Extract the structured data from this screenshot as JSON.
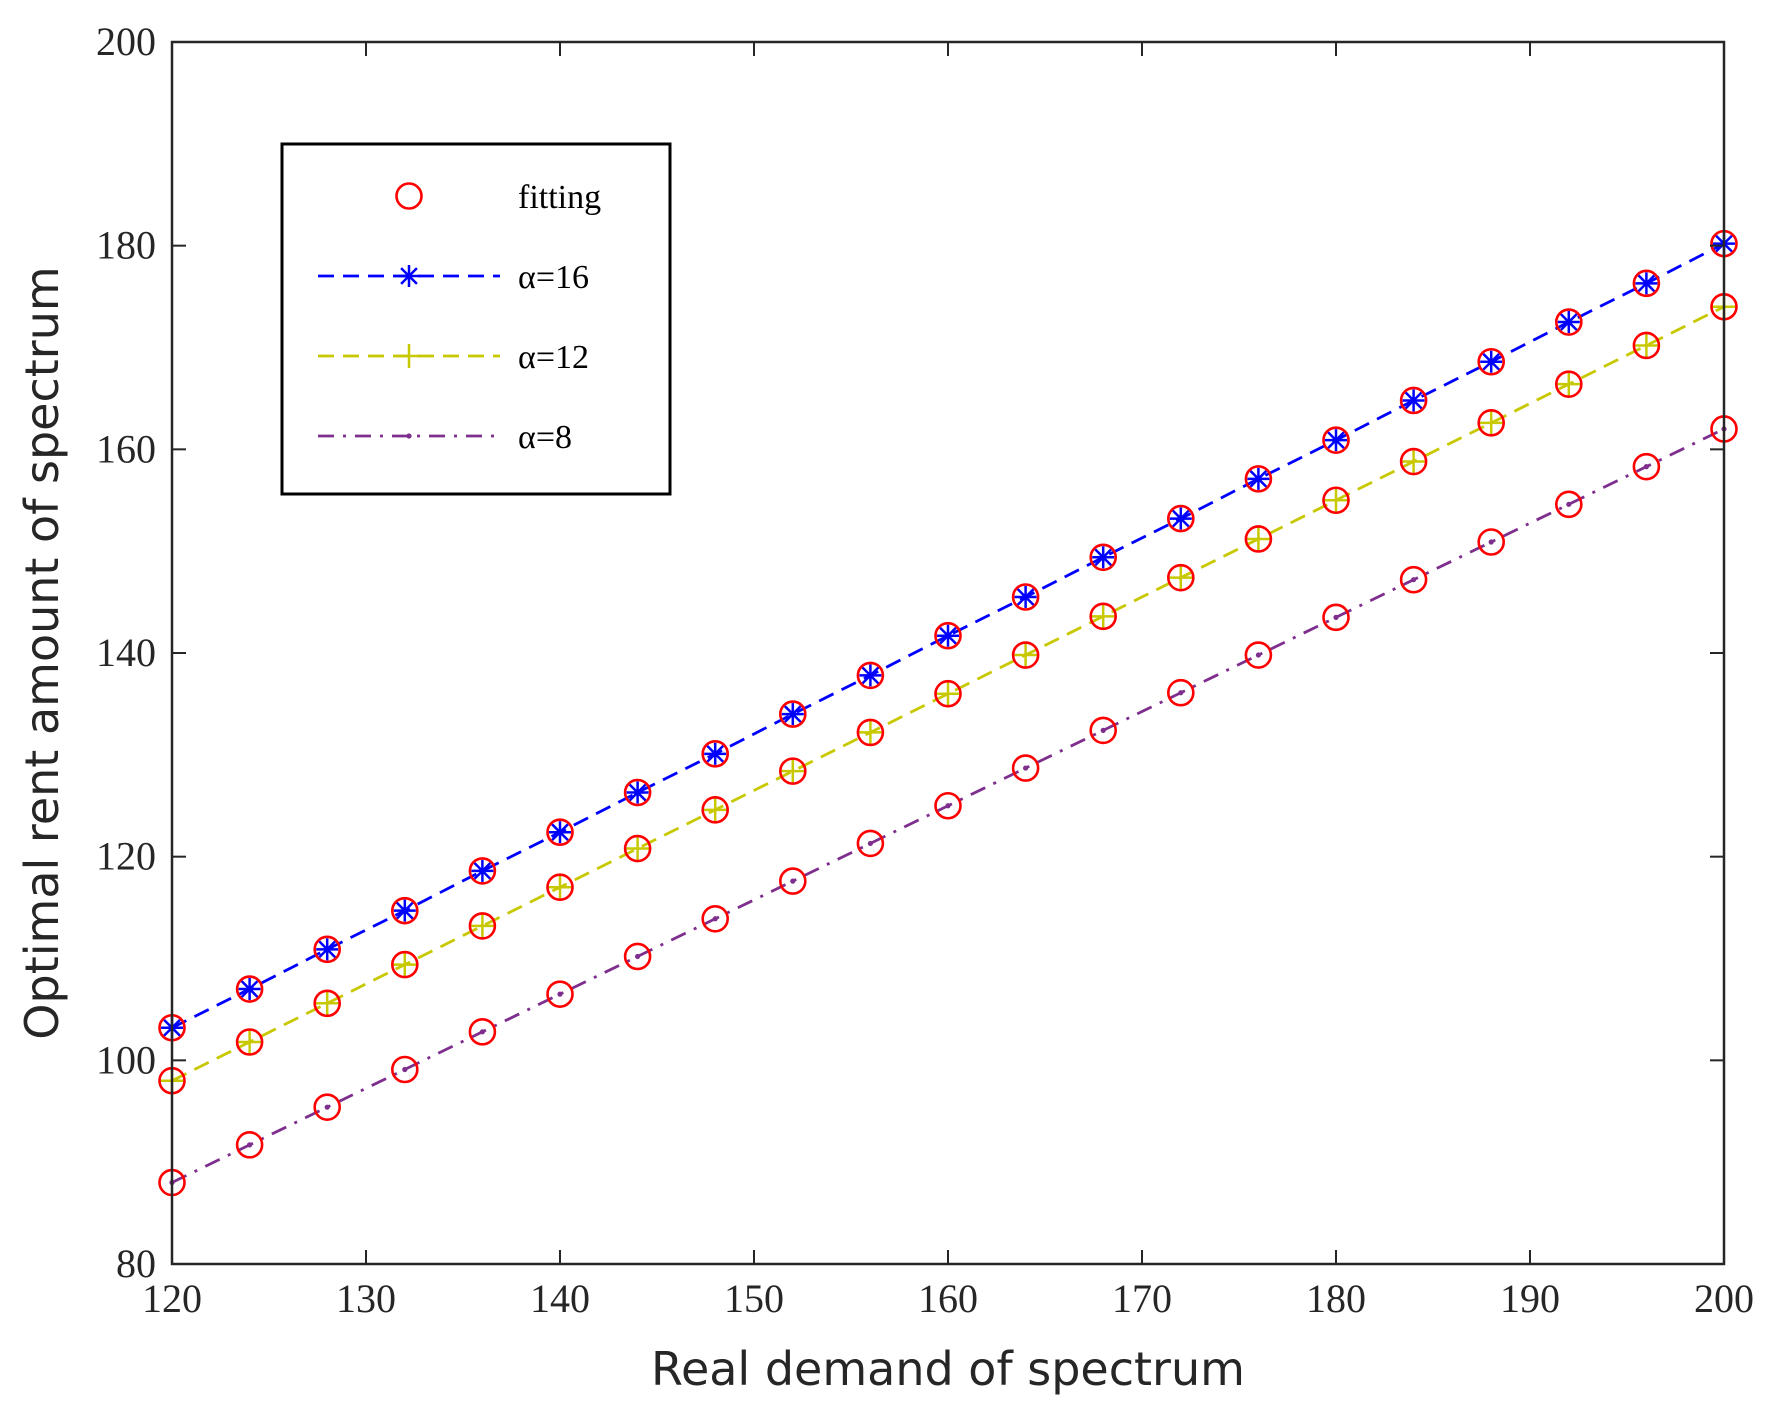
{
  "chart_data": {
    "type": "line",
    "title": "",
    "xlabel": "Real demand of spectrum",
    "ylabel": "Optimal rent amount of spectrum",
    "xlim": [
      120,
      200
    ],
    "ylim": [
      80,
      200
    ],
    "xticks": [
      120,
      130,
      140,
      150,
      160,
      170,
      180,
      190,
      200
    ],
    "yticks": [
      80,
      100,
      120,
      140,
      160,
      180,
      200
    ],
    "grid": false,
    "legend_position": "top-left",
    "x": [
      120,
      124,
      128,
      132,
      136,
      140,
      144,
      148,
      152,
      156,
      160,
      164,
      168,
      172,
      176,
      180,
      184,
      188,
      192,
      196,
      200
    ],
    "series": [
      {
        "name": "α=16",
        "color": "#0000ff",
        "line_style": "dashed",
        "marker": "asterisk",
        "values": [
          103.2,
          107.0,
          110.9,
          114.7,
          118.6,
          122.4,
          126.3,
          130.1,
          134.0,
          137.8,
          141.7,
          145.5,
          149.4,
          153.2,
          157.1,
          160.9,
          164.8,
          168.6,
          172.5,
          176.3,
          180.2
        ]
      },
      {
        "name": "α=12",
        "color": "#c8c800",
        "line_style": "dashed",
        "marker": "plus",
        "values": [
          98.0,
          101.8,
          105.6,
          109.4,
          113.2,
          117.0,
          120.8,
          124.6,
          128.4,
          132.2,
          136.0,
          139.8,
          143.6,
          147.4,
          151.2,
          155.0,
          158.8,
          162.6,
          166.4,
          170.2,
          174.0
        ]
      },
      {
        "name": "α=8",
        "color": "#7e2f8e",
        "line_style": "dashdot",
        "marker": "dot",
        "values": [
          88.0,
          91.7,
          95.4,
          99.1,
          102.8,
          106.5,
          110.2,
          113.9,
          117.6,
          121.3,
          125.0,
          128.7,
          132.4,
          136.1,
          139.8,
          143.5,
          147.2,
          150.9,
          154.6,
          158.3,
          162.0
        ]
      }
    ],
    "fitting": {
      "name": "fitting",
      "color": "#ff0000",
      "marker": "circle",
      "applies_to": [
        "α=16",
        "α=12",
        "α=8"
      ]
    }
  }
}
